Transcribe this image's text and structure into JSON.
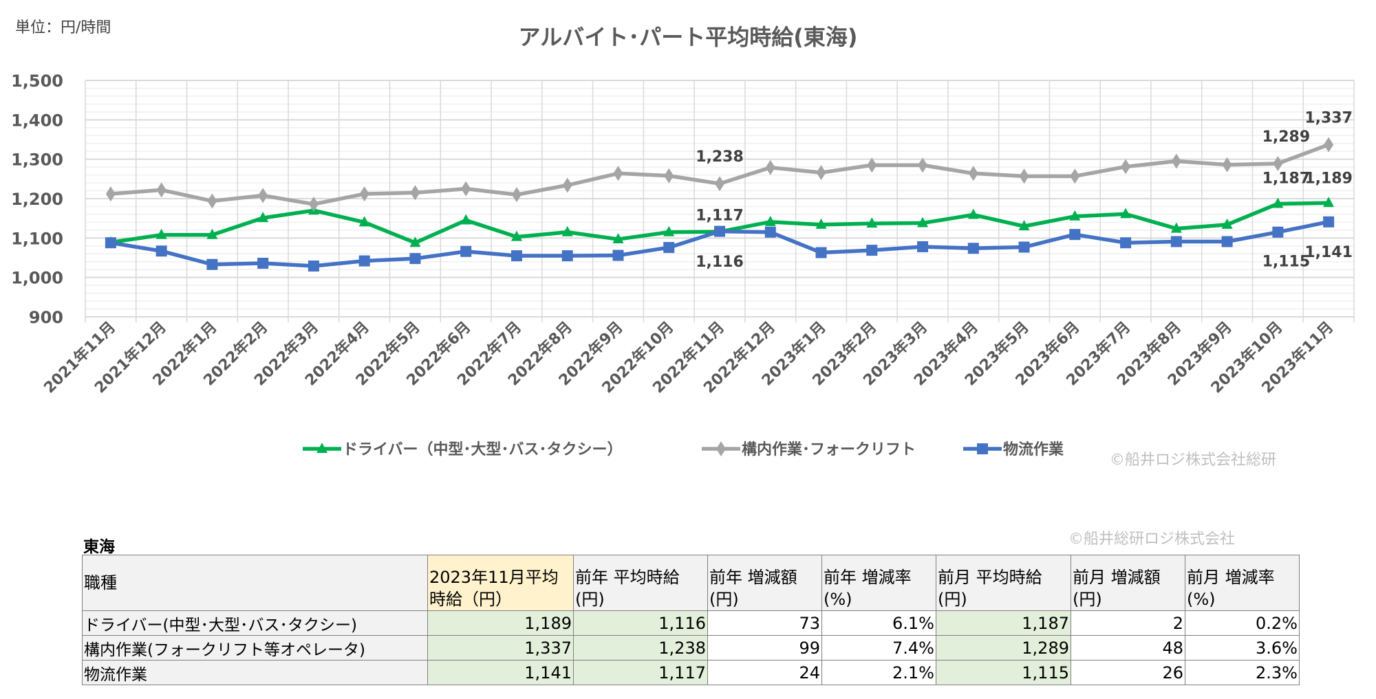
{
  "unit_label": "単位：円/時間",
  "copyright_chart": "©船井ロジ株式会社総研",
  "copyright_table": "©船井総研ロジ株式会社",
  "chart_data": {
    "type": "line",
    "title": "アルバイト･パート平均時給(東海)",
    "xlabel": "",
    "ylabel": "",
    "ylim": [
      900,
      1500
    ],
    "yticks": [
      "900",
      "1,000",
      "1,100",
      "1,200",
      "1,300",
      "1,400",
      "1,500"
    ],
    "grid": true,
    "legend_position": "bottom",
    "categories": [
      "2021年11月",
      "2021年12月",
      "2022年1月",
      "2022年2月",
      "2022年3月",
      "2022年4月",
      "2022年5月",
      "2022年6月",
      "2022年7月",
      "2022年8月",
      "2022年9月",
      "2022年10月",
      "2022年11月",
      "2022年12月",
      "2023年1月",
      "2023年2月",
      "2023年3月",
      "2023年4月",
      "2023年5月",
      "2023年6月",
      "2023年7月",
      "2023年8月",
      "2023年9月",
      "2023年10月",
      "2023年11月"
    ],
    "series": [
      {
        "name": "ドライバー（中型･大型･バス･タクシー）",
        "color": "#00b050",
        "marker": "triangle",
        "values": [
          1089,
          1108,
          1108,
          1151,
          1170,
          1140,
          1088,
          1145,
          1103,
          1115,
          1097,
          1115,
          1116,
          1141,
          1134,
          1137,
          1138,
          1159,
          1130,
          1155,
          1161,
          1124,
          1134,
          1187,
          1189
        ]
      },
      {
        "name": "構内作業･フォークリフト",
        "color": "#a5a5a5",
        "marker": "diamond",
        "values": [
          1212,
          1222,
          1194,
          1208,
          1186,
          1212,
          1215,
          1225,
          1210,
          1234,
          1264,
          1258,
          1238,
          1279,
          1266,
          1285,
          1285,
          1264,
          1257,
          1257,
          1281,
          1295,
          1286,
          1289,
          1337
        ]
      },
      {
        "name": "物流作業",
        "color": "#4472c4",
        "marker": "square",
        "values": [
          1088,
          1067,
          1033,
          1036,
          1029,
          1042,
          1048,
          1066,
          1055,
          1055,
          1056,
          1076,
          1117,
          1115,
          1063,
          1069,
          1078,
          1074,
          1077,
          1109,
          1088,
          1091,
          1091,
          1115,
          1141
        ]
      }
    ],
    "data_labels": [
      {
        "series": 1,
        "category": "2022年11月",
        "text": "1,238"
      },
      {
        "series": 2,
        "category": "2022年11月",
        "text": "1,117"
      },
      {
        "series": 0,
        "category": "2022年11月",
        "text": "1,116"
      },
      {
        "series": 1,
        "category": "2023年10月",
        "text": "1,289"
      },
      {
        "series": 1,
        "category": "2023年11月",
        "text": "1,337"
      },
      {
        "series": 0,
        "category": "2023年10月",
        "text": "1,187"
      },
      {
        "series": 0,
        "category": "2023年11月",
        "text": "1,189"
      },
      {
        "series": 2,
        "category": "2023年10月",
        "text": "1,115"
      },
      {
        "series": 2,
        "category": "2023年11月",
        "text": "1,141"
      }
    ]
  },
  "table": {
    "region": "東海",
    "headers": [
      "職種",
      "2023年11月平均時給（円）",
      "前年 平均時給(円)",
      "前年 増減額(円)",
      "前年 増減率(%)",
      "前月 平均時給(円)",
      "前月 増減額(円)",
      "前月 増減率(%)"
    ],
    "rows": [
      [
        "ドライバー(中型･大型･バス･タクシー)",
        "1,189",
        "1,116",
        "73",
        "6.1%",
        "1,187",
        "2",
        "0.2%"
      ],
      [
        "構内作業(フォークリフト等オペレータ)",
        "1,337",
        "1,238",
        "99",
        "7.4%",
        "1,289",
        "48",
        "3.6%"
      ],
      [
        "物流作業",
        "1,141",
        "1,117",
        "24",
        "2.1%",
        "1,115",
        "26",
        "2.3%"
      ]
    ]
  }
}
